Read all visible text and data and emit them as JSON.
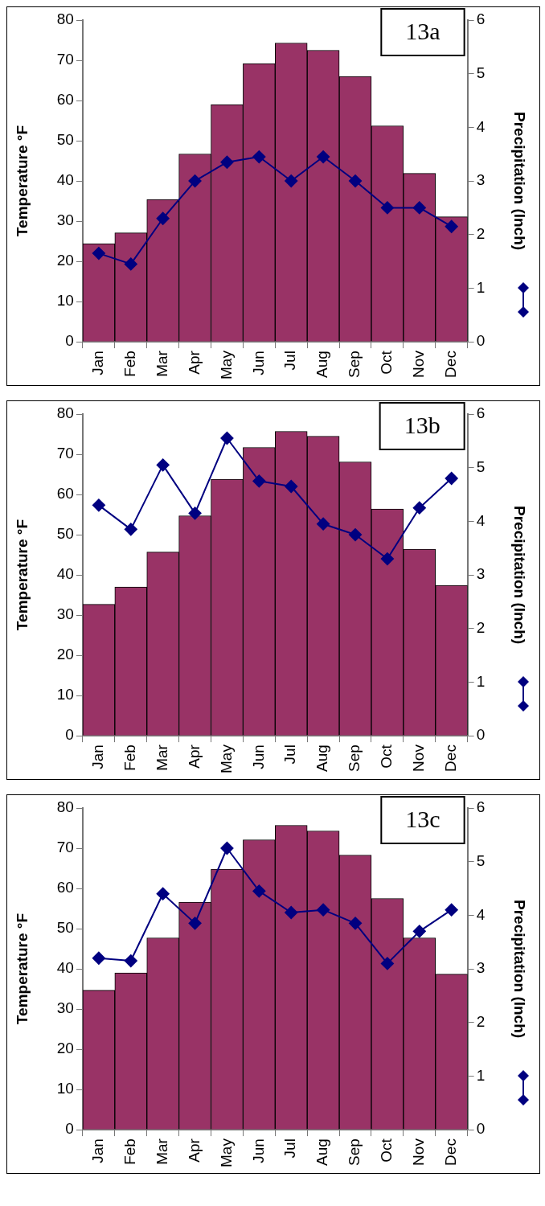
{
  "chart_data": [
    {
      "type": "bar",
      "categories": [
        "Jan",
        "Feb",
        "Mar",
        "Apr",
        "May",
        "Jun",
        "Jul",
        "Aug",
        "Sep",
        "Oct",
        "Nov",
        "Dec"
      ],
      "ylabel": "Temperature °F",
      "y2label": "Precipitation (Inch)",
      "ylim": [
        0,
        80
      ],
      "yticks": [
        0,
        10,
        20,
        30,
        40,
        50,
        60,
        70,
        80
      ],
      "y2lim": [
        0,
        6
      ],
      "y2ticks": [
        0,
        1,
        2,
        3,
        4,
        5,
        6
      ],
      "marker": "diamond",
      "annotations": [
        "13a"
      ],
      "series": [
        {
          "color": "#993366",
          "values": [
            24.4,
            27.1,
            35.4,
            46.7,
            59,
            69.2,
            74.3,
            72.5,
            66,
            53.7,
            41.9,
            31.1
          ]
        },
        {
          "type": "line",
          "axis": "y2",
          "color": "#000080",
          "values": [
            1.65,
            1.45,
            2.3,
            3,
            3.35,
            3.45,
            3,
            3.45,
            3,
            2.5,
            2.5,
            2.15
          ]
        }
      ]
    },
    {
      "type": "bar",
      "categories": [
        "Jan",
        "Feb",
        "Mar",
        "Apr",
        "May",
        "Jun",
        "Jul",
        "Aug",
        "Sep",
        "Oct",
        "Nov",
        "Dec"
      ],
      "ylabel": "Temperature °F",
      "y2label": "Precipitation (Inch)",
      "ylim": [
        0,
        80
      ],
      "yticks": [
        0,
        10,
        20,
        30,
        40,
        50,
        60,
        70,
        80
      ],
      "y2lim": [
        0,
        6
      ],
      "y2ticks": [
        0,
        1,
        2,
        3,
        4,
        5,
        6
      ],
      "marker": "diamond",
      "annotations": [
        "13b"
      ],
      "series": [
        {
          "color": "#993366",
          "values": [
            32.7,
            37,
            45.7,
            54.7,
            63.8,
            71.7,
            75.7,
            74.5,
            68.1,
            56.4,
            46.4,
            37.4
          ]
        },
        {
          "type": "line",
          "axis": "y2",
          "color": "#000080",
          "values": [
            4.3,
            3.85,
            5.05,
            4.15,
            5.55,
            4.75,
            4.65,
            3.95,
            3.75,
            3.3,
            4.25,
            4.8
          ]
        }
      ]
    },
    {
      "type": "bar",
      "categories": [
        "Jan",
        "Feb",
        "Mar",
        "Apr",
        "May",
        "Jun",
        "Jul",
        "Aug",
        "Sep",
        "Oct",
        "Nov",
        "Dec"
      ],
      "ylabel": "Temperature °F",
      "y2label": "Precipitation (Inch)",
      "ylim": [
        0,
        80
      ],
      "yticks": [
        0,
        10,
        20,
        30,
        40,
        50,
        60,
        70,
        80
      ],
      "y2lim": [
        0,
        6
      ],
      "y2ticks": [
        0,
        1,
        2,
        3,
        4,
        5,
        6
      ],
      "marker": "diamond",
      "annotations": [
        "13c"
      ],
      "series": [
        {
          "color": "#993366",
          "values": [
            34.7,
            39,
            47.7,
            56.6,
            64.8,
            72.1,
            75.7,
            74.3,
            68.3,
            57.5,
            47.7,
            38.7
          ]
        },
        {
          "type": "line",
          "axis": "y2",
          "color": "#000080",
          "values": [
            3.2,
            3.15,
            4.4,
            3.85,
            5.25,
            4.45,
            4.05,
            4.1,
            3.85,
            3.1,
            3.7,
            4.1
          ]
        }
      ]
    }
  ]
}
